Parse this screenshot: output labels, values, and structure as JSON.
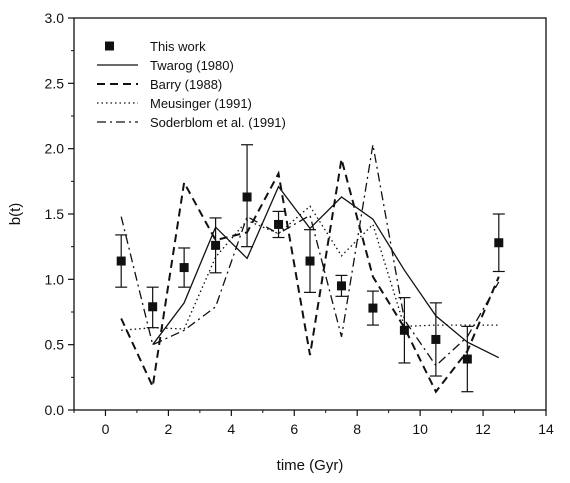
{
  "chart_data": {
    "type": "line",
    "title": "",
    "xlabel": "time (Gyr)",
    "ylabel": "b(t)",
    "xlim": [
      -1,
      14
    ],
    "ylim": [
      0.0,
      3.0
    ],
    "xticks": [
      0,
      2,
      4,
      6,
      8,
      10,
      12,
      14
    ],
    "yticks": [
      0.0,
      0.5,
      1.0,
      1.5,
      2.0,
      2.5,
      3.0
    ],
    "xtick_labels": [
      "0",
      "2",
      "4",
      "6",
      "8",
      "10",
      "12",
      "14"
    ],
    "ytick_labels": [
      "0.0",
      "0.5",
      "1.0",
      "1.5",
      "2.0",
      "2.5",
      "3.0"
    ],
    "grid": false,
    "legend_position": "top-left",
    "series": [
      {
        "name": "This work",
        "style": "points-errorbars",
        "color": "#111111",
        "x": [
          0.5,
          1.5,
          2.5,
          3.5,
          4.5,
          5.5,
          6.5,
          7.5,
          8.5,
          9.5,
          10.5,
          11.5,
          12.5
        ],
        "y": [
          1.14,
          0.79,
          1.09,
          1.26,
          1.63,
          1.42,
          1.14,
          0.95,
          0.78,
          0.61,
          0.54,
          0.39,
          1.28
        ],
        "yerr_low": [
          0.94,
          0.63,
          0.94,
          1.05,
          1.25,
          1.32,
          0.9,
          0.87,
          0.65,
          0.36,
          0.26,
          0.14,
          1.06
        ],
        "yerr_high": [
          1.34,
          0.94,
          1.24,
          1.47,
          2.03,
          1.52,
          1.38,
          1.03,
          0.91,
          0.86,
          0.82,
          0.64,
          1.5
        ]
      },
      {
        "name": "Twarog (1980)",
        "style": "solid",
        "color": "#111111",
        "x": [
          1.5,
          2.5,
          3.5,
          4.5,
          5.5,
          6.5,
          7.5,
          8.5,
          9.5,
          10.5,
          11.5,
          12.5
        ],
        "y": [
          0.5,
          0.82,
          1.4,
          1.16,
          1.71,
          1.39,
          1.63,
          1.46,
          1.07,
          0.72,
          0.52,
          0.4
        ]
      },
      {
        "name": "Barry (1988)",
        "style": "dashed",
        "color": "#111111",
        "x": [
          0.5,
          1.5,
          2.5,
          3.5,
          4.5,
          5.5,
          6.5,
          7.5,
          8.5,
          9.5,
          10.5,
          11.5,
          12.5
        ],
        "y": [
          0.7,
          0.18,
          1.74,
          1.3,
          1.36,
          1.81,
          0.42,
          1.92,
          1.02,
          0.63,
          0.14,
          0.45,
          1.02
        ]
      },
      {
        "name": "Meusinger (1991)",
        "style": "dotted",
        "color": "#111111",
        "x": [
          0.5,
          1.5,
          2.5,
          3.5,
          4.5,
          5.5,
          6.5,
          7.5,
          8.5,
          9.5,
          10.5,
          11.5,
          12.5
        ],
        "y": [
          0.61,
          0.63,
          0.62,
          1.17,
          1.45,
          1.35,
          1.56,
          1.18,
          1.42,
          0.64,
          0.65,
          0.65,
          0.65
        ]
      },
      {
        "name": "Soderblom et al. (1991)",
        "style": "dashdot",
        "color": "#111111",
        "x": [
          0.5,
          1.5,
          2.5,
          3.5,
          4.5,
          5.5,
          6.5,
          7.5,
          8.5,
          9.5,
          10.5,
          11.5,
          12.5
        ],
        "y": [
          1.48,
          0.5,
          0.61,
          0.79,
          1.48,
          1.35,
          1.49,
          0.56,
          2.03,
          0.69,
          0.34,
          0.56,
          0.98
        ]
      }
    ]
  }
}
